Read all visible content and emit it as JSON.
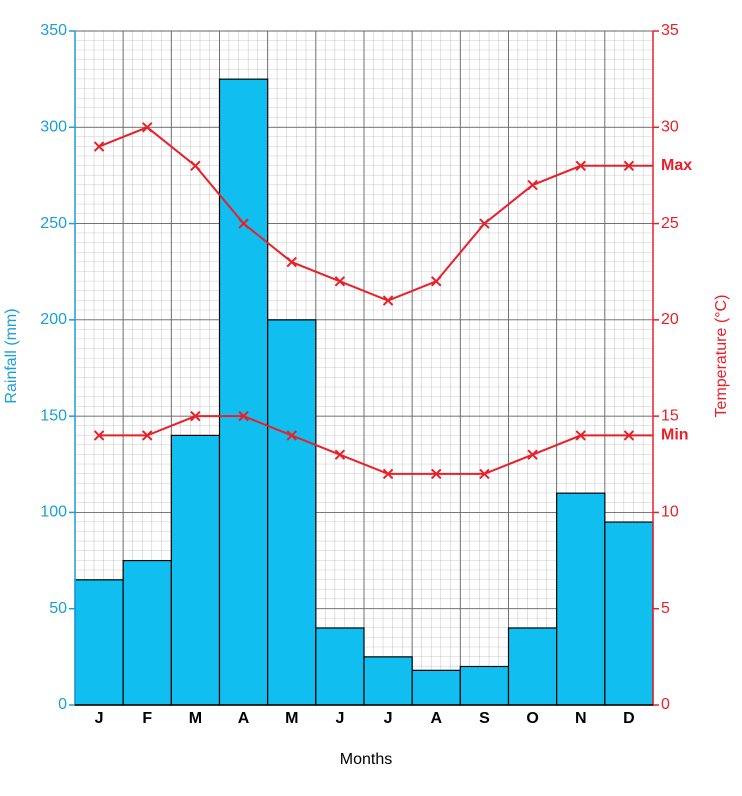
{
  "chart_data": {
    "type": "bar",
    "categories": [
      "J",
      "F",
      "M",
      "A",
      "M",
      "J",
      "J",
      "A",
      "S",
      "O",
      "N",
      "D"
    ],
    "values": [
      65,
      75,
      140,
      325,
      200,
      40,
      25,
      18,
      20,
      40,
      110,
      95
    ],
    "color": "#10bff0",
    "series": [
      {
        "name": "Max",
        "color": "#e8202a",
        "type": "line",
        "axis": "y2",
        "values": [
          29,
          30,
          28,
          25,
          23,
          22,
          21,
          22,
          25,
          27,
          28,
          28
        ]
      },
      {
        "name": "Min",
        "color": "#e8202a",
        "type": "line",
        "axis": "y2",
        "values": [
          14,
          14,
          15,
          15,
          14,
          13,
          12,
          12,
          12,
          13,
          14,
          14
        ]
      }
    ],
    "ylabel": "Rainfall (mm)",
    "y2label": "Temperature (°C)",
    "xlabel": "Months",
    "ylim": [
      0,
      350
    ],
    "yticks": [
      0,
      50,
      100,
      150,
      200,
      250,
      300,
      350
    ],
    "y2lim": [
      0,
      35
    ],
    "y2ticks": [
      0,
      5,
      10,
      15,
      20,
      25,
      30,
      35
    ],
    "grid": true
  }
}
